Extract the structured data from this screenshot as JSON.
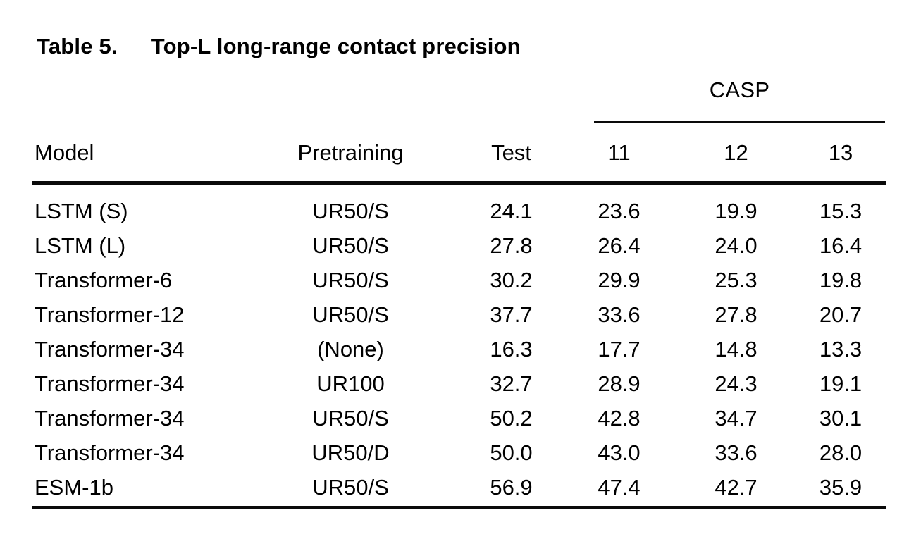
{
  "title": {
    "label": "Table 5.",
    "text": "Top-L long-range contact precision"
  },
  "table": {
    "group_header": "CASP",
    "columns": {
      "model": "Model",
      "pretraining": "Pretraining",
      "test": "Test",
      "casp11": "11",
      "casp12": "12",
      "casp13": "13"
    },
    "rows": [
      {
        "model": "LSTM (S)",
        "pretraining": "UR50/S",
        "test": "24.1",
        "casp11": "23.6",
        "casp12": "19.9",
        "casp13": "15.3"
      },
      {
        "model": "LSTM (L)",
        "pretraining": "UR50/S",
        "test": "27.8",
        "casp11": "26.4",
        "casp12": "24.0",
        "casp13": "16.4"
      },
      {
        "model": "Transformer-6",
        "pretraining": "UR50/S",
        "test": "30.2",
        "casp11": "29.9",
        "casp12": "25.3",
        "casp13": "19.8"
      },
      {
        "model": "Transformer-12",
        "pretraining": "UR50/S",
        "test": "37.7",
        "casp11": "33.6",
        "casp12": "27.8",
        "casp13": "20.7"
      },
      {
        "model": "Transformer-34",
        "pretraining": "(None)",
        "test": "16.3",
        "casp11": "17.7",
        "casp12": "14.8",
        "casp13": "13.3"
      },
      {
        "model": "Transformer-34",
        "pretraining": "UR100",
        "test": "32.7",
        "casp11": "28.9",
        "casp12": "24.3",
        "casp13": "19.1"
      },
      {
        "model": "Transformer-34",
        "pretraining": "UR50/S",
        "test": "50.2",
        "casp11": "42.8",
        "casp12": "34.7",
        "casp13": "30.1"
      },
      {
        "model": "Transformer-34",
        "pretraining": "UR50/D",
        "test": "50.0",
        "casp11": "43.0",
        "casp12": "33.6",
        "casp13": "28.0"
      },
      {
        "model": "ESM-1b",
        "pretraining": "UR50/S",
        "test": "56.9",
        "casp11": "47.4",
        "casp12": "42.7",
        "casp13": "35.9"
      }
    ]
  },
  "colors": {
    "text": "#000000",
    "rule": "#0a0a0a",
    "background": "#ffffff"
  },
  "chart_data": {
    "type": "table",
    "title": "Table 5. Top-L long-range contact precision",
    "column_group": {
      "label": "CASP",
      "spans": [
        "11",
        "12",
        "13"
      ]
    },
    "categories": [
      "Model",
      "Pretraining",
      "Test",
      "11",
      "12",
      "13"
    ],
    "series": [
      {
        "name": "Test",
        "values": [
          24.1,
          27.8,
          30.2,
          37.7,
          16.3,
          32.7,
          50.2,
          50.0,
          56.9
        ]
      },
      {
        "name": "CASP 11",
        "values": [
          23.6,
          26.4,
          29.9,
          33.6,
          17.7,
          28.9,
          42.8,
          43.0,
          47.4
        ]
      },
      {
        "name": "CASP 12",
        "values": [
          19.9,
          24.0,
          25.3,
          27.8,
          14.8,
          24.3,
          34.7,
          33.6,
          42.7
        ]
      },
      {
        "name": "CASP 13",
        "values": [
          15.3,
          16.4,
          19.8,
          20.7,
          13.3,
          19.1,
          30.1,
          28.0,
          35.9
        ]
      }
    ],
    "row_labels": [
      "LSTM (S) UR50/S",
      "LSTM (L) UR50/S",
      "Transformer-6 UR50/S",
      "Transformer-12 UR50/S",
      "Transformer-34 (None)",
      "Transformer-34 UR100",
      "Transformer-34 UR50/S",
      "Transformer-34 UR50/D",
      "ESM-1b UR50/S"
    ]
  }
}
